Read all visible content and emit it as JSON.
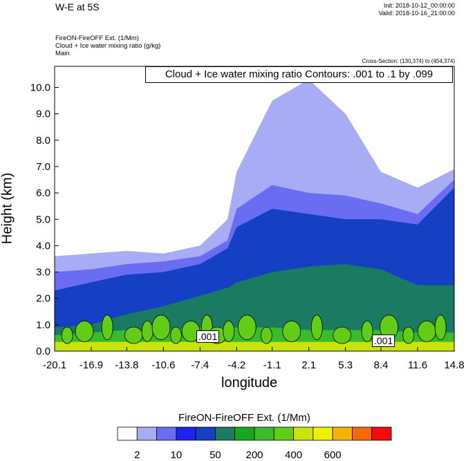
{
  "header": {
    "title": "W-E at 5S",
    "init": "Init: 2018-10-12_00:00:00",
    "valid": "Valid: 2018-10-16_21:00:00",
    "field_line1": "FireON-FireOFF Ext.   (1/Mm)",
    "field_line2": "Cloud + Ice water mixing ratio   (g/kg)",
    "field_line3": "Main",
    "cross_section": "Cross-Section: (130,374) to (454,374)"
  },
  "annotation": "Cloud + Ice water mixing ratio Contours: .001 to .1 by .099",
  "contour_labels": [
    ".001",
    ".001"
  ],
  "colors": {
    "levels": [
      "#ffffff",
      "#a8acf4",
      "#6a6cf2",
      "#1f22ee",
      "#1640c4",
      "#1a7a62",
      "#16a81c",
      "#38bc2a",
      "#62cc18",
      "#c8e40a",
      "#eef006",
      "#f8b206",
      "#f46a0a",
      "#f20c0c"
    ],
    "background": "#ffffff"
  },
  "colorbar": {
    "title": "FireON-FireOFF Ext.  (1/Mm)",
    "labels": [
      "2",
      "10",
      "50",
      "200",
      "400",
      "600"
    ]
  },
  "chart_data": {
    "type": "heatmap",
    "title": "W-E at 5S",
    "xlabel": "longitude",
    "ylabel": "Height (km)",
    "xlim": [
      -20.1,
      14.8
    ],
    "ylim": [
      0.0,
      10.8
    ],
    "x_tick_labels": [
      "-20.1",
      "-16.9",
      "-13.8",
      "-10.6",
      "-7.4",
      "-4.2",
      "-1.1",
      "2.1",
      "5.3",
      "8.4",
      "11.6",
      "14.8"
    ],
    "y_tick_labels": [
      "0.0",
      "1.0",
      "2.0",
      "3.0",
      "4.0",
      "5.0",
      "6.0",
      "7.0",
      "8.0",
      "9.0",
      "10.0"
    ],
    "contour_levels_labelled": [
      0,
      2,
      10,
      50,
      200,
      400,
      600
    ],
    "approx_band_tops_km": {
      "x": [
        -20.1,
        -17.0,
        -13.8,
        -10.6,
        -7.4,
        -5.0,
        -4.2,
        -1.1,
        2.1,
        5.3,
        8.4,
        11.6,
        14.8
      ],
      "level_2": [
        3.6,
        3.7,
        3.8,
        3.7,
        4.0,
        5.0,
        6.8,
        9.5,
        10.3,
        9.0,
        6.8,
        6.2,
        6.9
      ],
      "level_10": [
        3.0,
        3.1,
        3.3,
        3.4,
        3.6,
        4.2,
        5.4,
        6.3,
        6.0,
        5.9,
        5.6,
        5.2,
        6.5
      ],
      "level_50": [
        2.3,
        2.6,
        2.9,
        3.0,
        3.3,
        3.9,
        4.7,
        5.4,
        5.2,
        5.0,
        5.0,
        4.8,
        6.2
      ],
      "level_200": [
        0.9,
        1.0,
        1.4,
        1.7,
        2.1,
        2.4,
        2.6,
        3.0,
        3.2,
        3.3,
        3.1,
        2.5,
        2.5
      ],
      "level_400": [
        0.6,
        0.7,
        0.8,
        0.8,
        0.9,
        0.9,
        0.9,
        0.9,
        0.8,
        0.8,
        0.8,
        0.7,
        0.7
      ]
    }
  }
}
